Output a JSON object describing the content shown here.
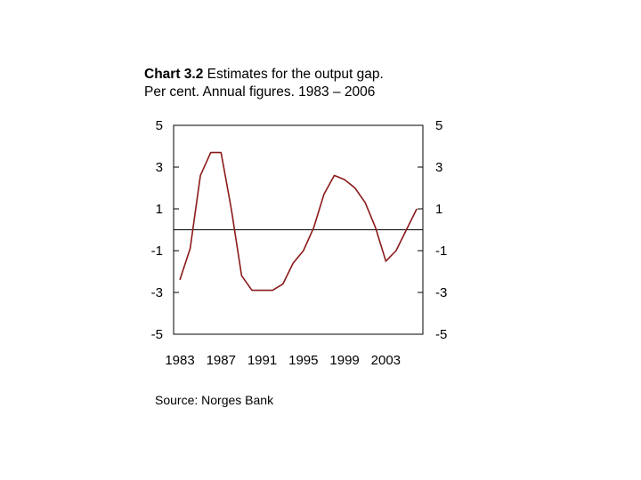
{
  "title": {
    "chart_num": "Chart 3.2",
    "line1_rest": " Estimates for the output gap.",
    "line2": "Per cent. Annual figures. 1983 – 2006"
  },
  "source": "Source: Norges Bank",
  "colors": {
    "series": "#8b1a1a",
    "zero_line": "#000000",
    "frame": "#000000"
  },
  "chart_data": {
    "type": "line",
    "title": "Estimates for the output gap. Per cent. Annual figures. 1983 – 2006",
    "xlabel": "",
    "ylabel": "",
    "xlim": [
      1983,
      2006
    ],
    "ylim": [
      -5,
      5
    ],
    "x_ticks": [
      "1983",
      "1987",
      "1991",
      "1995",
      "1999",
      "2003"
    ],
    "y_ticks_left": [
      "5",
      "3",
      "1",
      "-1",
      "-3",
      "-5"
    ],
    "y_ticks_right": [
      "5",
      "3",
      "1",
      "-1",
      "-3",
      "-5"
    ],
    "reference_line": 0,
    "grid": false,
    "series": [
      {
        "x": [
          1983,
          1984,
          1985,
          1986,
          1987,
          1988,
          1989,
          1990,
          1991,
          1992,
          1993,
          1994,
          1995,
          1996,
          1997,
          1998,
          1999,
          2000,
          2001,
          2002,
          2003,
          2004,
          2005,
          2006
        ],
        "values": [
          -2.4,
          -0.9,
          2.6,
          3.7,
          3.7,
          1.0,
          -2.2,
          -2.9,
          -2.9,
          -2.9,
          -2.6,
          -1.6,
          -1.0,
          0.1,
          1.7,
          2.6,
          2.4,
          2.0,
          1.3,
          0.1,
          -1.5,
          -1.0,
          0.0,
          1.0
        ]
      }
    ]
  }
}
